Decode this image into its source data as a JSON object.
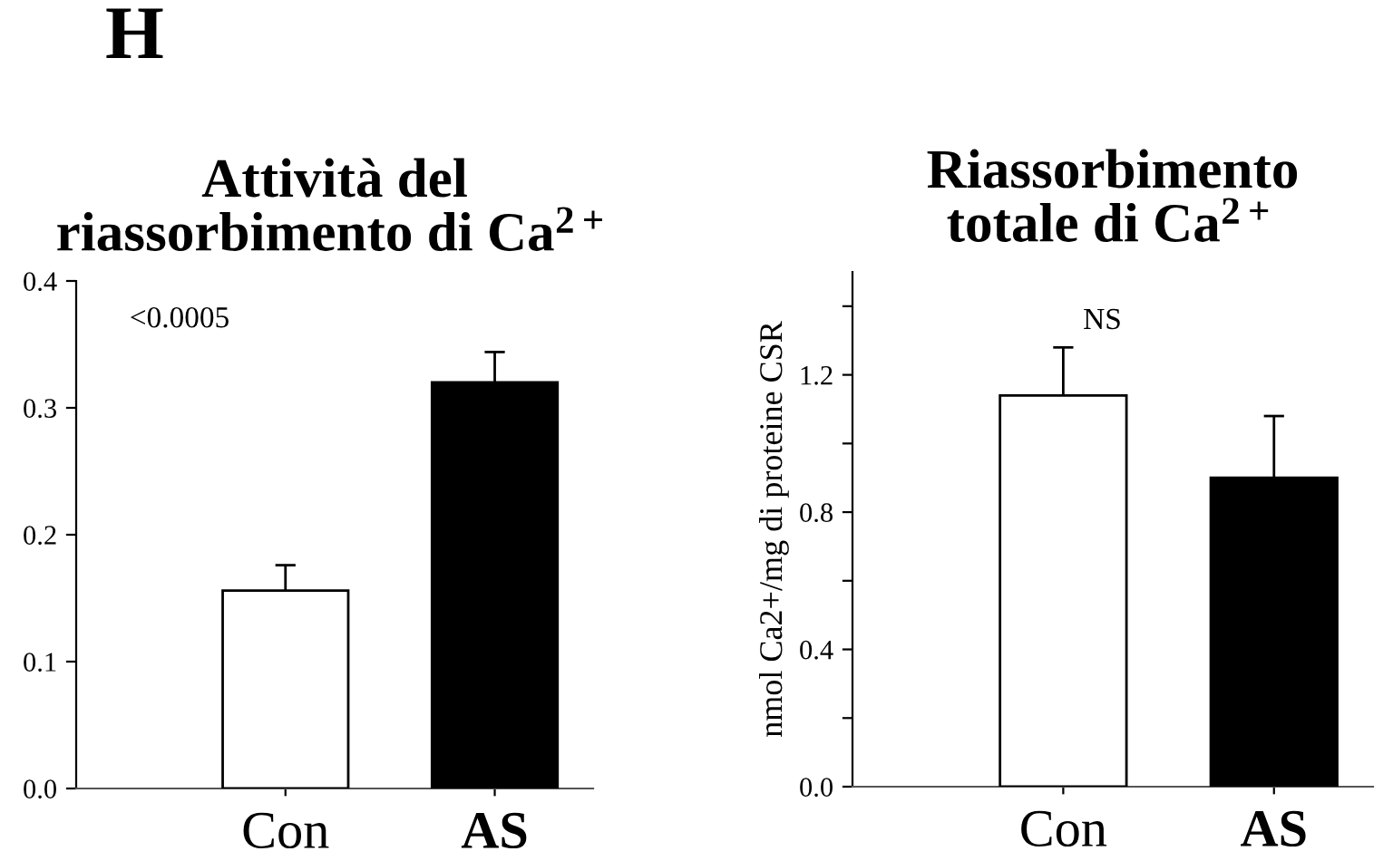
{
  "chart_data": [
    {
      "type": "bar",
      "title": "Attività del\nriassorbimento di Ca$^{2+}$",
      "categories": [
        "Con",
        "AS"
      ],
      "values": [
        0.156,
        0.32
      ],
      "errors": [
        0.02,
        0.024
      ],
      "colors": [
        "#ffffff",
        "#000000"
      ],
      "ylim": [
        0,
        0.4
      ],
      "yticks": [
        {
          "value": 0.0,
          "label": "0.0"
        },
        {
          "value": 0.1,
          "label": "0.1"
        },
        {
          "value": 0.2,
          "label": "0.2"
        },
        {
          "value": 0.3,
          "label": "0.3"
        },
        {
          "value": 0.4,
          "label": "0.4"
        }
      ],
      "annotations": [
        "H",
        "<0.0005"
      ],
      "grid": false
    },
    {
      "type": "bar",
      "title": "Riassorbimento\ntotale di Ca$^{2+}$",
      "ylabel": "nmol Ca2+/mg di proteine CSR",
      "categories": [
        "Con",
        "AS"
      ],
      "values": [
        1.14,
        0.9
      ],
      "errors": [
        0.14,
        0.18
      ],
      "colors": [
        "#ffffff",
        "#000000"
      ],
      "ylim": [
        0,
        1.5
      ],
      "yticks": [
        {
          "value": 0.0,
          "label": "0.0"
        },
        {
          "value": 0.2,
          "label": null
        },
        {
          "value": 0.4,
          "label": "0.4"
        },
        {
          "value": 0.6,
          "label": null
        },
        {
          "value": 0.8,
          "label": "0.8"
        },
        {
          "value": 1.0,
          "label": null
        },
        {
          "value": 1.2,
          "label": "1.2"
        },
        {
          "value": 1.4,
          "label": null
        }
      ],
      "annotations": [
        "NS"
      ],
      "grid": false
    }
  ]
}
